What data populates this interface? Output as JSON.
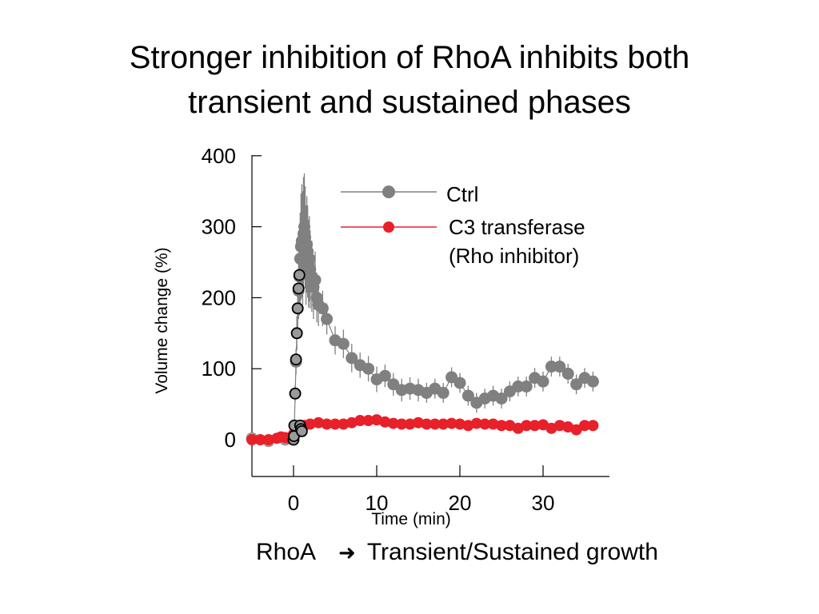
{
  "slide": {
    "title_line1": "Stronger inhibition of RhoA inhibits both",
    "title_line2": "transient and sustained phases",
    "caption_left": "RhoA",
    "caption_arrow_icon": "arrow-right-icon",
    "caption_right": "Transient/Sustained growth"
  },
  "chart_data": {
    "type": "scatter",
    "xlabel": "Time (min)",
    "ylabel": "Volume change (%)",
    "xlim": [
      -5,
      38
    ],
    "ylim": [
      -50,
      400
    ],
    "xticks": [
      0,
      10,
      20,
      30
    ],
    "yticks": [
      0,
      100,
      200,
      300,
      400
    ],
    "legend_position": "top-right",
    "series": [
      {
        "name": "Ctrl",
        "color": "#808080",
        "early_color": "#9a9a9a",
        "early_until": 1.0,
        "x": [
          -5,
          -3,
          -1,
          0,
          0.1,
          0.2,
          0.3,
          0.4,
          0.5,
          0.6,
          0.7,
          0.8,
          0.9,
          1.0,
          1.1,
          1.2,
          1.3,
          1.4,
          1.5,
          1.6,
          1.7,
          1.8,
          1.9,
          2.0,
          2.2,
          2.4,
          2.6,
          2.8,
          3.0,
          3.5,
          4.0,
          5.0,
          6.0,
          7.0,
          8.0,
          9.0,
          10.0,
          11.0,
          12.0,
          13.0,
          14.0,
          15.0,
          16.0,
          17.0,
          18.0,
          19.0,
          20.0,
          21.0,
          22.0,
          23.0,
          24.0,
          25.0,
          26.0,
          27.0,
          28.0,
          29.0,
          30.0,
          31.0,
          32.0,
          33.0,
          34.0,
          35.0,
          36.0
        ],
        "y": [
          2,
          -2,
          0,
          5,
          20,
          65,
          110,
          150,
          185,
          210,
          230,
          255,
          272,
          280,
          270,
          290,
          300,
          285,
          260,
          275,
          265,
          248,
          255,
          240,
          230,
          215,
          225,
          200,
          190,
          185,
          170,
          140,
          135,
          115,
          105,
          100,
          85,
          90,
          78,
          70,
          72,
          70,
          66,
          72,
          66,
          88,
          80,
          62,
          52,
          58,
          62,
          58,
          68,
          75,
          75,
          87,
          82,
          103,
          103,
          93,
          78,
          87,
          82
        ],
        "error": [
          6,
          6,
          6,
          6,
          8,
          12,
          18,
          24,
          30,
          40,
          55,
          65,
          75,
          80,
          80,
          80,
          75,
          72,
          70,
          68,
          65,
          62,
          60,
          55,
          50,
          45,
          40,
          35,
          30,
          25,
          22,
          20,
          20,
          20,
          18,
          18,
          18,
          16,
          16,
          16,
          16,
          16,
          14,
          14,
          14,
          14,
          14,
          14,
          14,
          14,
          14,
          14,
          14,
          14,
          14,
          14,
          14,
          14,
          14,
          14,
          14,
          14,
          14
        ]
      },
      {
        "name": "C3 transferase\n(Rho inhibitor)",
        "color": "#e8202a",
        "x": [
          -5,
          -4,
          -3,
          -2,
          -1.5,
          -1,
          -0.5,
          0,
          0.3,
          0.6,
          1.0,
          1.3,
          2,
          3,
          4,
          5,
          6,
          7,
          8,
          9,
          10,
          11,
          12,
          13,
          14,
          15,
          16,
          17,
          18,
          19,
          20,
          21,
          22,
          23,
          24,
          25,
          26,
          27,
          28,
          29,
          30,
          31,
          32,
          33,
          34,
          35,
          36
        ],
        "y": [
          0,
          0,
          0,
          2,
          4,
          3,
          2,
          8,
          12,
          16,
          18,
          20,
          22,
          24,
          22,
          22,
          22,
          24,
          27,
          27,
          28,
          25,
          23,
          22,
          22,
          24,
          22,
          22,
          22,
          23,
          22,
          20,
          23,
          22,
          22,
          20,
          20,
          16,
          20,
          20,
          21,
          16,
          20,
          18,
          14,
          20,
          20
        ],
        "error": [
          2,
          2,
          2,
          2,
          2,
          2,
          2,
          3,
          3,
          3,
          3,
          3,
          3,
          3,
          3,
          3,
          3,
          3,
          3,
          3,
          3,
          3,
          3,
          3,
          3,
          3,
          3,
          3,
          3,
          3,
          3,
          3,
          3,
          3,
          3,
          3,
          3,
          3,
          3,
          3,
          3,
          3,
          3,
          3,
          3,
          3,
          3
        ]
      }
    ],
    "initial_rise_points": {
      "style": "black-outlined",
      "x": [
        0,
        0.05,
        0.1,
        0.2,
        0.3,
        0.4,
        0.5,
        0.6,
        0.7,
        0.8,
        0.9,
        1.0
      ],
      "y": [
        0,
        5,
        20,
        65,
        113,
        150,
        185,
        213,
        232,
        20,
        15,
        12
      ]
    }
  }
}
